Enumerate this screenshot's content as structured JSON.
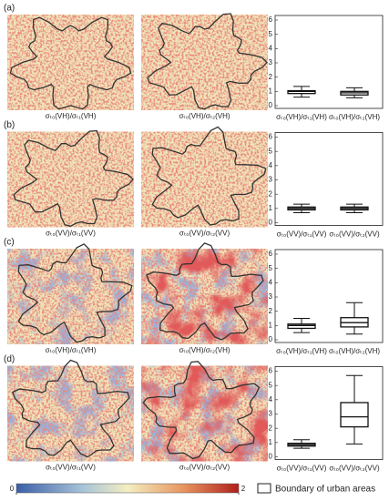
{
  "chart_data": [
    {
      "type": "box",
      "panel_label": "(a)",
      "map_captions": [
        "σₜ₀(VH)/σₜ₁(VH)",
        "σₜ₀(VH)/σₜ₂(VH)"
      ],
      "categories": [
        "σₜ₀(VH)/σₜ₁(VH)",
        "σₜ₀(VH)/σₜ₂(VH)"
      ],
      "min": [
        0.6,
        0.55
      ],
      "q1": [
        0.85,
        0.75
      ],
      "median": [
        1.0,
        0.9
      ],
      "q3": [
        1.05,
        1.0
      ],
      "max": [
        1.35,
        1.25
      ],
      "ylim": [
        0,
        6
      ],
      "yticks": [
        0,
        1,
        2,
        3,
        4,
        5,
        6
      ]
    },
    {
      "type": "box",
      "panel_label": "(b)",
      "map_captions": [
        "σₜ₀(VV)/σₜ₁(VV)",
        "σₜ₀(VV)/σₜ₂(VV)"
      ],
      "categories": [
        "σₜ₀(VV)/σₜ₁(VV)",
        "σₜ₀(VV)/σₜ₂(VV)"
      ],
      "min": [
        0.7,
        0.7
      ],
      "q1": [
        0.9,
        0.9
      ],
      "median": [
        1.0,
        1.0
      ],
      "q3": [
        1.1,
        1.1
      ],
      "max": [
        1.3,
        1.3
      ],
      "ylim": [
        0,
        6
      ],
      "yticks": [
        0,
        1,
        2,
        3,
        4,
        5,
        6
      ]
    },
    {
      "type": "box",
      "panel_label": "(c)",
      "map_captions": [
        "σₜ₀(VH)/σₜ₁(VH)",
        "σₜ₀(VH)/σₜ₂(VH)"
      ],
      "categories": [
        "σₜ₀(VH)/σₜ₁(VH)",
        "σₜ₀(VH)/σₜ₂(VH)"
      ],
      "min": [
        0.5,
        0.4
      ],
      "q1": [
        0.8,
        0.9
      ],
      "median": [
        1.0,
        1.2
      ],
      "q3": [
        1.1,
        1.55
      ],
      "max": [
        1.5,
        2.6
      ],
      "ylim": [
        0,
        6
      ],
      "yticks": [
        0,
        1,
        2,
        3,
        4,
        5,
        6
      ]
    },
    {
      "type": "box",
      "panel_label": "(d)",
      "map_captions": [
        "σₜ₀(VV)/σₜ₁(VV)",
        "σₜ₀(VV)/σₜ₂(VV)"
      ],
      "categories": [
        "σₜ₀(VV)/σₜ₁(VV)",
        "σₜ₀(VV)/σₜ₂(VV)"
      ],
      "min": [
        0.6,
        0.9
      ],
      "q1": [
        0.75,
        2.1
      ],
      "median": [
        0.85,
        2.8
      ],
      "q3": [
        0.95,
        3.8
      ],
      "max": [
        1.2,
        5.7
      ],
      "ylim": [
        0,
        6
      ],
      "yticks": [
        0,
        1,
        2,
        3,
        4,
        5,
        6
      ]
    }
  ],
  "colorbar": {
    "lim": [
      0,
      2
    ],
    "ticks": [
      0,
      2
    ]
  },
  "legend": "Boundary of urban areas"
}
